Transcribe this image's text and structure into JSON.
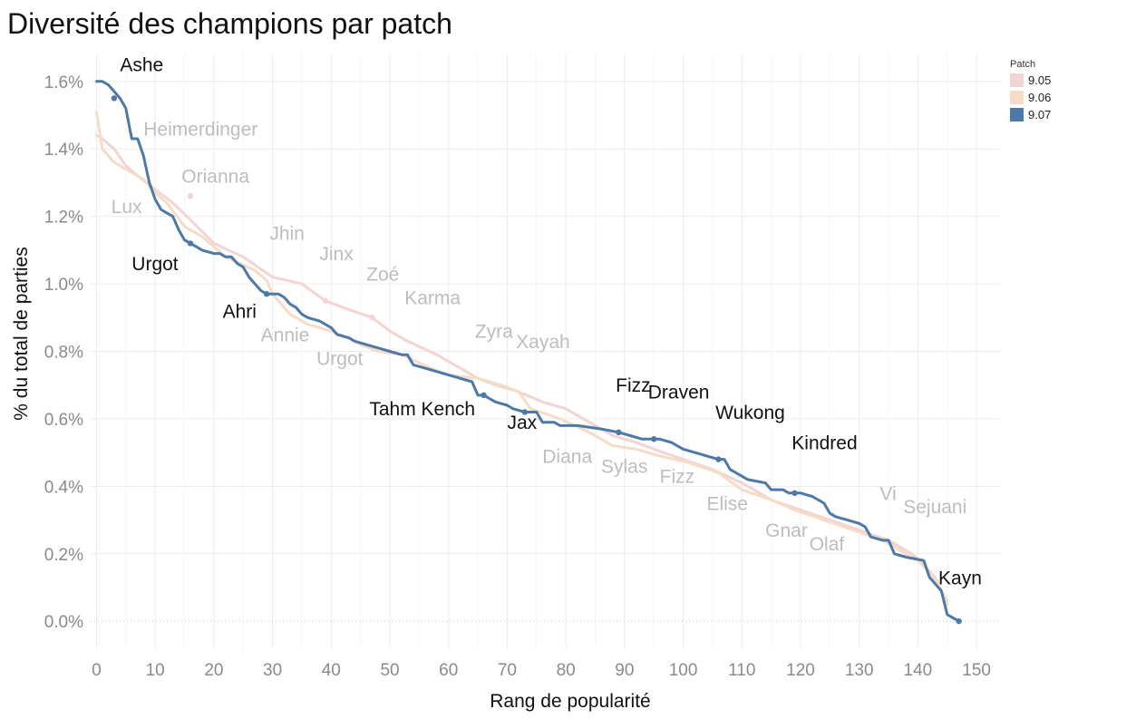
{
  "chart_data": {
    "type": "line",
    "title": "Diversité des champions par patch",
    "xlabel": "Rang de popularité",
    "ylabel": "% du total de parties",
    "xlim": [
      -1,
      154
    ],
    "ylim": [
      -0.08,
      1.68
    ],
    "x_ticks": [
      0,
      10,
      20,
      30,
      40,
      50,
      60,
      70,
      80,
      90,
      100,
      110,
      120,
      130,
      140,
      150
    ],
    "x_tick_labels": [
      "0",
      "10",
      "20",
      "30",
      "40",
      "50",
      "60",
      "70",
      "80",
      "90",
      "100",
      "110",
      "120",
      "130",
      "140",
      "150"
    ],
    "y_ticks": [
      0.0,
      0.2,
      0.4,
      0.6,
      0.8,
      1.0,
      1.2,
      1.4,
      1.6
    ],
    "y_tick_labels": [
      "0.0%",
      "0.2%",
      "0.4%",
      "0.6%",
      "0.8%",
      "1.0%",
      "1.2%",
      "1.4%",
      "1.6%"
    ],
    "grid": true,
    "legend": {
      "title": "Patch",
      "position": "top-right"
    },
    "series": [
      {
        "name": "9.05",
        "color": "#f2d4d4",
        "points": [
          [
            0,
            1.44
          ],
          [
            1,
            1.43
          ],
          [
            3,
            1.4
          ],
          [
            5,
            1.35
          ],
          [
            7,
            1.32
          ],
          [
            10,
            1.28
          ],
          [
            13,
            1.24
          ],
          [
            16,
            1.19
          ],
          [
            20,
            1.12
          ],
          [
            25,
            1.08
          ],
          [
            30,
            1.02
          ],
          [
            35,
            1.0
          ],
          [
            39,
            0.95
          ],
          [
            42,
            0.93
          ],
          [
            47,
            0.9
          ],
          [
            50,
            0.86
          ],
          [
            53,
            0.83
          ],
          [
            58,
            0.79
          ],
          [
            62,
            0.75
          ],
          [
            65,
            0.72
          ],
          [
            68,
            0.7
          ],
          [
            72,
            0.68
          ],
          [
            76,
            0.65
          ],
          [
            80,
            0.63
          ],
          [
            84,
            0.59
          ],
          [
            88,
            0.55
          ],
          [
            92,
            0.53
          ],
          [
            95,
            0.51
          ],
          [
            100,
            0.48
          ],
          [
            105,
            0.45
          ],
          [
            110,
            0.41
          ],
          [
            115,
            0.36
          ],
          [
            120,
            0.33
          ],
          [
            125,
            0.3
          ],
          [
            130,
            0.27
          ],
          [
            135,
            0.24
          ],
          [
            139,
            0.2
          ],
          [
            142,
            0.15
          ],
          [
            145,
            0.06
          ]
        ],
        "dots": [
          [
            16,
            1.26
          ],
          [
            39,
            0.95
          ],
          [
            47,
            0.9
          ]
        ]
      },
      {
        "name": "9.06",
        "color": "#f5dcc6",
        "points": [
          [
            0,
            1.51
          ],
          [
            1,
            1.4
          ],
          [
            3,
            1.36
          ],
          [
            5,
            1.34
          ],
          [
            8,
            1.31
          ],
          [
            10,
            1.27
          ],
          [
            12,
            1.24
          ],
          [
            15,
            1.17
          ],
          [
            18,
            1.14
          ],
          [
            22,
            1.08
          ],
          [
            27,
            1.04
          ],
          [
            29,
            1.01
          ],
          [
            30,
            0.97
          ],
          [
            33,
            0.91
          ],
          [
            36,
            0.88
          ],
          [
            40,
            0.86
          ],
          [
            43,
            0.84
          ],
          [
            45,
            0.82
          ],
          [
            48,
            0.8
          ],
          [
            52,
            0.79
          ],
          [
            57,
            0.75
          ],
          [
            60,
            0.73
          ],
          [
            65,
            0.72
          ],
          [
            69,
            0.7
          ],
          [
            72,
            0.68
          ],
          [
            74,
            0.63
          ],
          [
            79,
            0.6
          ],
          [
            84,
            0.56
          ],
          [
            88,
            0.52
          ],
          [
            92,
            0.51
          ],
          [
            96,
            0.49
          ],
          [
            101,
            0.47
          ],
          [
            106,
            0.44
          ],
          [
            110,
            0.39
          ],
          [
            115,
            0.36
          ],
          [
            119,
            0.33
          ],
          [
            124,
            0.3
          ],
          [
            129,
            0.27
          ],
          [
            134,
            0.24
          ],
          [
            140,
            0.18
          ],
          [
            143,
            0.13
          ],
          [
            145,
            0.05
          ]
        ],
        "dots": []
      },
      {
        "name": "9.07",
        "color": "#4e79a7",
        "points": [
          [
            0,
            1.6
          ],
          [
            1,
            1.6
          ],
          [
            2,
            1.59
          ],
          [
            3,
            1.57
          ],
          [
            4,
            1.55
          ],
          [
            5,
            1.52
          ],
          [
            6,
            1.43
          ],
          [
            7,
            1.43
          ],
          [
            8,
            1.38
          ],
          [
            9,
            1.3
          ],
          [
            10,
            1.25
          ],
          [
            11,
            1.22
          ],
          [
            12,
            1.21
          ],
          [
            13,
            1.2
          ],
          [
            14,
            1.16
          ],
          [
            15,
            1.13
          ],
          [
            16,
            1.12
          ],
          [
            17,
            1.11
          ],
          [
            18,
            1.1
          ],
          [
            20,
            1.09
          ],
          [
            21,
            1.09
          ],
          [
            22,
            1.08
          ],
          [
            23,
            1.08
          ],
          [
            24,
            1.06
          ],
          [
            25,
            1.05
          ],
          [
            26,
            1.02
          ],
          [
            27,
            1.0
          ],
          [
            28,
            0.98
          ],
          [
            29,
            0.97
          ],
          [
            31,
            0.97
          ],
          [
            32,
            0.96
          ],
          [
            33,
            0.94
          ],
          [
            34,
            0.93
          ],
          [
            35,
            0.91
          ],
          [
            36,
            0.9
          ],
          [
            38,
            0.89
          ],
          [
            40,
            0.87
          ],
          [
            41,
            0.85
          ],
          [
            43,
            0.84
          ],
          [
            44,
            0.83
          ],
          [
            46,
            0.82
          ],
          [
            48,
            0.81
          ],
          [
            50,
            0.8
          ],
          [
            52,
            0.79
          ],
          [
            53,
            0.79
          ],
          [
            54,
            0.76
          ],
          [
            56,
            0.75
          ],
          [
            58,
            0.74
          ],
          [
            60,
            0.73
          ],
          [
            62,
            0.72
          ],
          [
            64,
            0.71
          ],
          [
            65,
            0.67
          ],
          [
            66,
            0.67
          ],
          [
            68,
            0.65
          ],
          [
            70,
            0.64
          ],
          [
            71,
            0.63
          ],
          [
            73,
            0.62
          ],
          [
            75,
            0.62
          ],
          [
            76,
            0.59
          ],
          [
            78,
            0.59
          ],
          [
            79,
            0.58
          ],
          [
            82,
            0.58
          ],
          [
            86,
            0.57
          ],
          [
            89,
            0.56
          ],
          [
            91,
            0.55
          ],
          [
            93,
            0.54
          ],
          [
            96,
            0.54
          ],
          [
            98,
            0.53
          ],
          [
            100,
            0.51
          ],
          [
            102,
            0.5
          ],
          [
            104,
            0.49
          ],
          [
            106,
            0.48
          ],
          [
            107,
            0.48
          ],
          [
            108,
            0.45
          ],
          [
            110,
            0.43
          ],
          [
            111,
            0.42
          ],
          [
            114,
            0.41
          ],
          [
            115,
            0.39
          ],
          [
            117,
            0.39
          ],
          [
            118,
            0.38
          ],
          [
            120,
            0.38
          ],
          [
            122,
            0.37
          ],
          [
            124,
            0.35
          ],
          [
            125,
            0.32
          ],
          [
            126,
            0.31
          ],
          [
            128,
            0.3
          ],
          [
            130,
            0.29
          ],
          [
            131,
            0.28
          ],
          [
            132,
            0.25
          ],
          [
            134,
            0.24
          ],
          [
            135,
            0.24
          ],
          [
            136,
            0.2
          ],
          [
            138,
            0.19
          ],
          [
            141,
            0.18
          ],
          [
            142,
            0.13
          ],
          [
            143,
            0.11
          ],
          [
            144,
            0.09
          ],
          [
            145,
            0.02
          ],
          [
            147,
            0.0
          ]
        ],
        "dots": [
          [
            3,
            1.55
          ],
          [
            16,
            1.12
          ],
          [
            29,
            0.97
          ],
          [
            66,
            0.67
          ],
          [
            73,
            0.62
          ],
          [
            89,
            0.56
          ],
          [
            95,
            0.54
          ],
          [
            106,
            0.48
          ],
          [
            119,
            0.38
          ],
          [
            147,
            0.0
          ]
        ]
      }
    ],
    "annotations": [
      {
        "text": "Ashe",
        "x": 4,
        "y": 1.63,
        "color": "#111111"
      },
      {
        "text": "Heimerdinger",
        "x": 8,
        "y": 1.44,
        "color": "#bdbdbd"
      },
      {
        "text": "Orianna",
        "x": 14.5,
        "y": 1.3,
        "color": "#bdbdbd"
      },
      {
        "text": "Lux",
        "x": 2.5,
        "y": 1.21,
        "color": "#bdbdbd"
      },
      {
        "text": "Urgot",
        "x": 6,
        "y": 1.04,
        "color": "#111111"
      },
      {
        "text": "Jhin",
        "x": 29.5,
        "y": 1.13,
        "color": "#bdbdbd"
      },
      {
        "text": "Jinx",
        "x": 38,
        "y": 1.07,
        "color": "#bdbdbd"
      },
      {
        "text": "Zoé",
        "x": 46,
        "y": 1.01,
        "color": "#bdbdbd"
      },
      {
        "text": "Karma",
        "x": 52.5,
        "y": 0.94,
        "color": "#bdbdbd"
      },
      {
        "text": "Ahri",
        "x": 21.5,
        "y": 0.9,
        "color": "#111111"
      },
      {
        "text": "Annie",
        "x": 28,
        "y": 0.83,
        "color": "#bdbdbd"
      },
      {
        "text": "Urgot",
        "x": 37.5,
        "y": 0.76,
        "color": "#bdbdbd"
      },
      {
        "text": "Zyra",
        "x": 64.5,
        "y": 0.84,
        "color": "#bdbdbd"
      },
      {
        "text": "Xayah",
        "x": 71.5,
        "y": 0.81,
        "color": "#bdbdbd"
      },
      {
        "text": "Tahm Kench",
        "x": 46.5,
        "y": 0.61,
        "color": "#111111"
      },
      {
        "text": "Jax",
        "x": 70,
        "y": 0.57,
        "color": "#111111"
      },
      {
        "text": "Fizz",
        "x": 88.5,
        "y": 0.68,
        "color": "#111111"
      },
      {
        "text": "Draven",
        "x": 94,
        "y": 0.66,
        "color": "#111111"
      },
      {
        "text": "Wukong",
        "x": 105.5,
        "y": 0.6,
        "color": "#111111"
      },
      {
        "text": "Kindred",
        "x": 118.5,
        "y": 0.51,
        "color": "#111111"
      },
      {
        "text": "Diana",
        "x": 76,
        "y": 0.47,
        "color": "#bdbdbd"
      },
      {
        "text": "Sylas",
        "x": 86,
        "y": 0.44,
        "color": "#bdbdbd"
      },
      {
        "text": "Fizz",
        "x": 96,
        "y": 0.41,
        "color": "#bdbdbd"
      },
      {
        "text": "Elise",
        "x": 104,
        "y": 0.33,
        "color": "#bdbdbd"
      },
      {
        "text": "Vi",
        "x": 133.5,
        "y": 0.36,
        "color": "#bdbdbd"
      },
      {
        "text": "Sejuani",
        "x": 137.5,
        "y": 0.32,
        "color": "#bdbdbd"
      },
      {
        "text": "Gnar",
        "x": 114,
        "y": 0.25,
        "color": "#bdbdbd"
      },
      {
        "text": "Olaf",
        "x": 121.5,
        "y": 0.21,
        "color": "#bdbdbd"
      },
      {
        "text": "Kayn",
        "x": 143.5,
        "y": 0.11,
        "color": "#111111"
      }
    ]
  }
}
